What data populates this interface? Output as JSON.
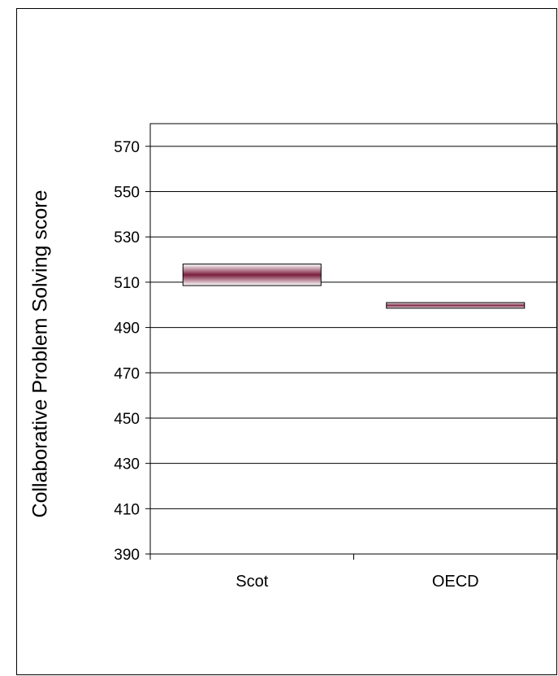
{
  "chart_data": {
    "type": "range-bar",
    "title": "",
    "xlabel": "",
    "ylabel": "Collaborative Problem Solving score",
    "ylim": [
      390,
      580
    ],
    "yticks": [
      390,
      410,
      430,
      450,
      470,
      490,
      510,
      530,
      550,
      570
    ],
    "grid": true,
    "categories": [
      "Scot",
      "OECD"
    ],
    "series": [
      {
        "low": [
          508.5,
          498.5
        ],
        "high": [
          518,
          501
        ],
        "mean": [
          513,
          500
        ]
      }
    ]
  },
  "colors": {
    "bar_center": "#7a1f3d",
    "bar_edge": "#ffffff",
    "grid": "#000000"
  }
}
